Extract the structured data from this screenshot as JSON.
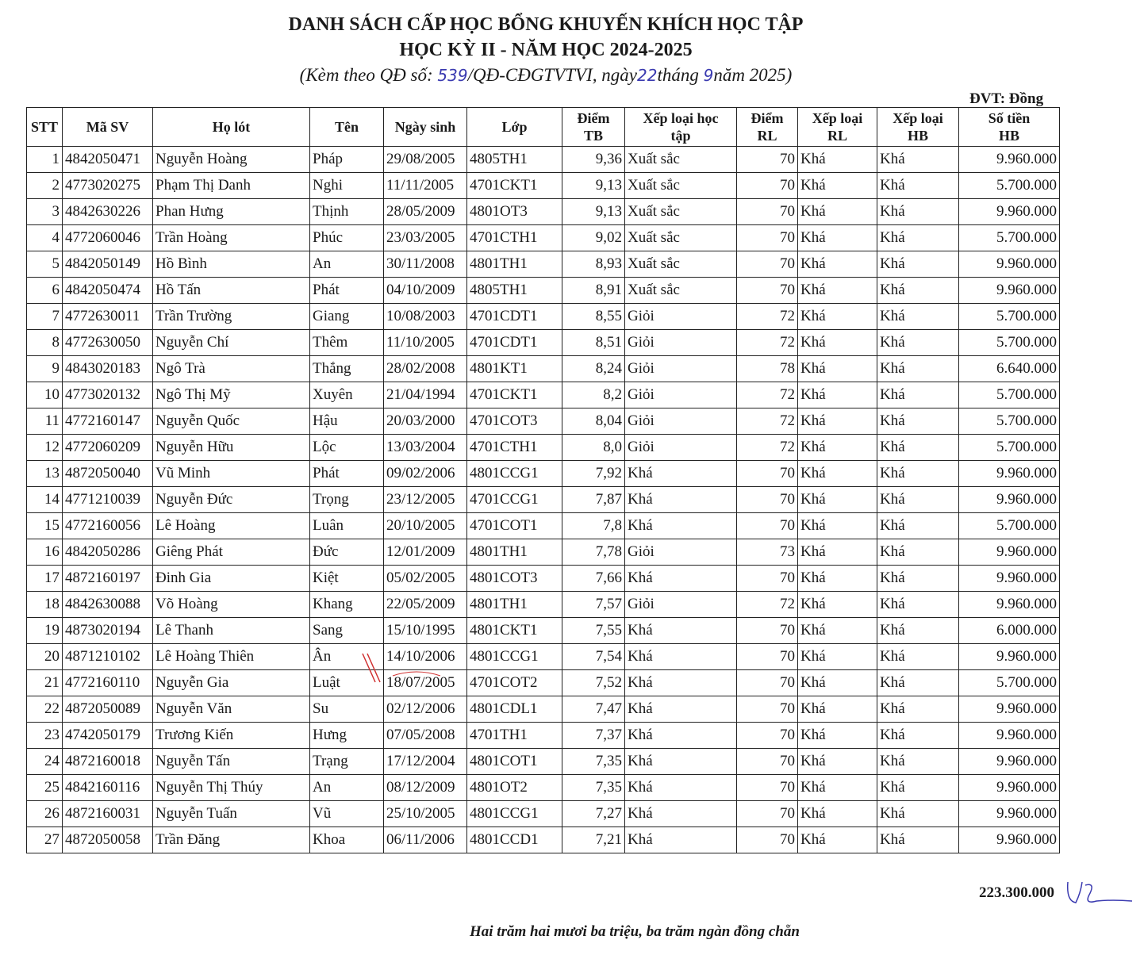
{
  "header": {
    "title_line1": "DANH SÁCH CẤP HỌC BỔNG KHUYẾN KHÍCH HỌC TẬP",
    "title_line2": "HỌC KỲ II -  NĂM HỌC 2024-2025",
    "sub_prefix": "(Kèm theo QĐ số: ",
    "decision_no": "539",
    "sub_mid1": "/QĐ-CĐGTVTVI, ngày",
    "day": "22",
    "sub_mid2": "tháng ",
    "month": "9",
    "sub_suffix": "năm 2025)",
    "unit": "ĐVT: Đồng"
  },
  "table": {
    "columns": [
      "STT",
      "Mã SV",
      "Họ lót",
      "Tên",
      "Ngày sinh",
      "Lớp",
      "Điểm TB",
      "Xếp loại học tập",
      "Điểm RL",
      "Xếp loại RL",
      "Xếp loại HB",
      "Số tiền HB"
    ],
    "rows": [
      [
        "1",
        "4842050471",
        "Nguyễn Hoàng",
        "Pháp",
        "29/08/2005",
        "4805TH1",
        "9,36",
        "Xuất sắc",
        "70",
        "Khá",
        "Khá",
        "9.960.000"
      ],
      [
        "2",
        "4773020275",
        "Phạm Thị Danh",
        "Nghi",
        "11/11/2005",
        "4701CKT1",
        "9,13",
        "Xuất sắc",
        "70",
        "Khá",
        "Khá",
        "5.700.000"
      ],
      [
        "3",
        "4842630226",
        "Phan Hưng",
        "Thịnh",
        "28/05/2009",
        "4801OT3",
        "9,13",
        "Xuất sắc",
        "70",
        "Khá",
        "Khá",
        "9.960.000"
      ],
      [
        "4",
        "4772060046",
        "Trần Hoàng",
        "Phúc",
        "23/03/2005",
        "4701CTH1",
        "9,02",
        "Xuất sắc",
        "70",
        "Khá",
        "Khá",
        "5.700.000"
      ],
      [
        "5",
        "4842050149",
        "Hồ Bình",
        "An",
        "30/11/2008",
        "4801TH1",
        "8,93",
        "Xuất sắc",
        "70",
        "Khá",
        "Khá",
        "9.960.000"
      ],
      [
        "6",
        "4842050474",
        "Hồ Tấn",
        "Phát",
        "04/10/2009",
        "4805TH1",
        "8,91",
        "Xuất sắc",
        "70",
        "Khá",
        "Khá",
        "9.960.000"
      ],
      [
        "7",
        "4772630011",
        "Trần Trường",
        "Giang",
        "10/08/2003",
        "4701CDT1",
        "8,55",
        "Giỏi",
        "72",
        "Khá",
        "Khá",
        "5.700.000"
      ],
      [
        "8",
        "4772630050",
        "Nguyễn Chí",
        "Thêm",
        "11/10/2005",
        "4701CDT1",
        "8,51",
        "Giỏi",
        "72",
        "Khá",
        "Khá",
        "5.700.000"
      ],
      [
        "9",
        "4843020183",
        "Ngô Trà",
        "Thắng",
        "28/02/2008",
        "4801KT1",
        "8,24",
        "Giỏi",
        "78",
        "Khá",
        "Khá",
        "6.640.000"
      ],
      [
        "10",
        "4773020132",
        "Ngô Thị Mỹ",
        "Xuyên",
        "21/04/1994",
        "4701CKT1",
        "8,2",
        "Giỏi",
        "72",
        "Khá",
        "Khá",
        "5.700.000"
      ],
      [
        "11",
        "4772160147",
        "Nguyễn Quốc",
        "Hậu",
        "20/03/2000",
        "4701COT3",
        "8,04",
        "Giỏi",
        "72",
        "Khá",
        "Khá",
        "5.700.000"
      ],
      [
        "12",
        "4772060209",
        "Nguyễn Hữu",
        "Lộc",
        "13/03/2004",
        "4701CTH1",
        "8,0",
        "Giỏi",
        "72",
        "Khá",
        "Khá",
        "5.700.000"
      ],
      [
        "13",
        "4872050040",
        "Vũ Minh",
        "Phát",
        "09/02/2006",
        "4801CCG1",
        "7,92",
        "Khá",
        "70",
        "Khá",
        "Khá",
        "9.960.000"
      ],
      [
        "14",
        "4771210039",
        "Nguyễn Đức",
        "Trọng",
        "23/12/2005",
        "4701CCG1",
        "7,87",
        "Khá",
        "70",
        "Khá",
        "Khá",
        "9.960.000"
      ],
      [
        "15",
        "4772160056",
        "Lê Hoàng",
        "Luân",
        "20/10/2005",
        "4701COT1",
        "7,8",
        "Khá",
        "70",
        "Khá",
        "Khá",
        "5.700.000"
      ],
      [
        "16",
        "4842050286",
        "Giêng Phát",
        "Đức",
        "12/01/2009",
        "4801TH1",
        "7,78",
        "Giỏi",
        "73",
        "Khá",
        "Khá",
        "9.960.000"
      ],
      [
        "17",
        "4872160197",
        "Đinh Gia",
        "Kiệt",
        "05/02/2005",
        "4801COT3",
        "7,66",
        "Khá",
        "70",
        "Khá",
        "Khá",
        "9.960.000"
      ],
      [
        "18",
        "4842630088",
        "Võ Hoàng",
        "Khang",
        "22/05/2009",
        "4801TH1",
        "7,57",
        "Giỏi",
        "72",
        "Khá",
        "Khá",
        "9.960.000"
      ],
      [
        "19",
        "4873020194",
        "Lê Thanh",
        "Sang",
        "15/10/1995",
        "4801CKT1",
        "7,55",
        "Khá",
        "70",
        "Khá",
        "Khá",
        "6.000.000"
      ],
      [
        "20",
        "4871210102",
        "Lê Hoàng Thiên",
        "Ân",
        "14/10/2006",
        "4801CCG1",
        "7,54",
        "Khá",
        "70",
        "Khá",
        "Khá",
        "9.960.000"
      ],
      [
        "21",
        "4772160110",
        "Nguyễn Gia",
        "Luật",
        "18/07/2005",
        "4701COT2",
        "7,52",
        "Khá",
        "70",
        "Khá",
        "Khá",
        "5.700.000"
      ],
      [
        "22",
        "4872050089",
        "Nguyễn Văn",
        "Su",
        "02/12/2006",
        "4801CDL1",
        "7,47",
        "Khá",
        "70",
        "Khá",
        "Khá",
        "9.960.000"
      ],
      [
        "23",
        "4742050179",
        "Trương Kiến",
        "Hưng",
        "07/05/2008",
        "4701TH1",
        "7,37",
        "Khá",
        "70",
        "Khá",
        "Khá",
        "9.960.000"
      ],
      [
        "24",
        "4872160018",
        "Nguyễn Tấn",
        "Trạng",
        "17/12/2004",
        "4801COT1",
        "7,35",
        "Khá",
        "70",
        "Khá",
        "Khá",
        "9.960.000"
      ],
      [
        "25",
        "4842160116",
        "Nguyễn Thị Thúy",
        "An",
        "08/12/2009",
        "4801OT2",
        "7,35",
        "Khá",
        "70",
        "Khá",
        "Khá",
        "9.960.000"
      ],
      [
        "26",
        "4872160031",
        "Nguyễn Tuấn",
        "Vũ",
        "25/10/2005",
        "4801CCG1",
        "7,27",
        "Khá",
        "70",
        "Khá",
        "Khá",
        "9.960.000"
      ],
      [
        "27",
        "4872050058",
        "Trần Đăng",
        "Khoa",
        "06/11/2006",
        "4801CCD1",
        "7,21",
        "Khá",
        "70",
        "Khá",
        "Khá",
        "9.960.000"
      ]
    ]
  },
  "footer": {
    "total": "223.300.000",
    "total_in_words": "Hai trăm hai mươi ba triệu, ba trăm ngàn đồng chẵn"
  },
  "colors": {
    "ink": "#1a1a1a",
    "handwriting": "#3a3ab0",
    "stamp": "#d03030"
  }
}
